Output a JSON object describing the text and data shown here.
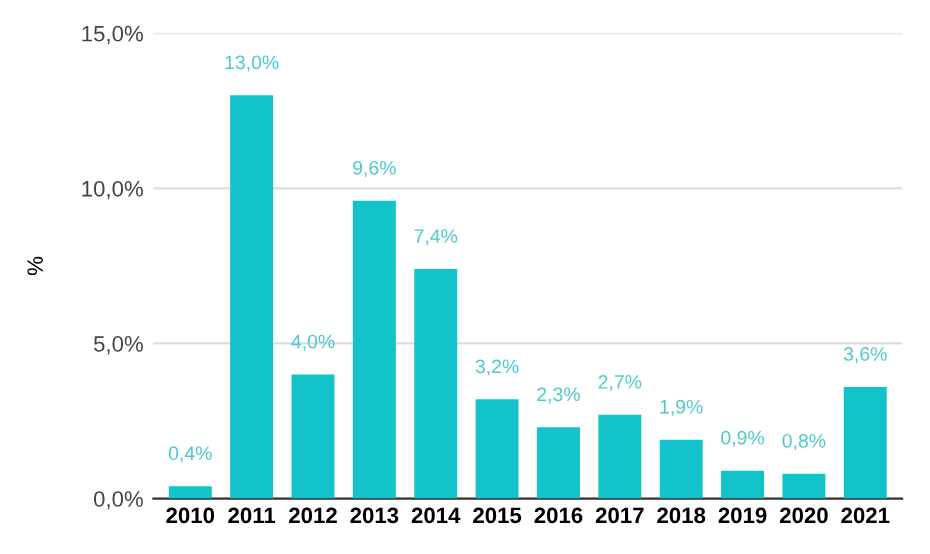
{
  "chart_data": {
    "type": "bar",
    "ylabel": "%",
    "categories": [
      "2010",
      "2011",
      "2012",
      "2013",
      "2014",
      "2015",
      "2016",
      "2017",
      "2018",
      "2019",
      "2020",
      "2021"
    ],
    "values": [
      0.4,
      13.0,
      4.0,
      9.6,
      7.4,
      3.2,
      2.3,
      2.7,
      1.9,
      0.9,
      0.8,
      3.6
    ],
    "value_labels": [
      "0,4%",
      "13,0%",
      "4,0%",
      "9,6%",
      "7,4%",
      "3,2%",
      "2,3%",
      "2,7%",
      "1,9%",
      "0,9%",
      "0,8%",
      "3,6%"
    ],
    "color": "#12c3c9",
    "ylim": [
      0,
      15
    ],
    "yticks": [
      {
        "value": 0,
        "label": "0,0%"
      },
      {
        "value": 5,
        "label": "5,0%"
      },
      {
        "value": 10,
        "label": "10,0%"
      },
      {
        "value": 15,
        "label": "15,0%"
      }
    ],
    "grid": "y"
  }
}
